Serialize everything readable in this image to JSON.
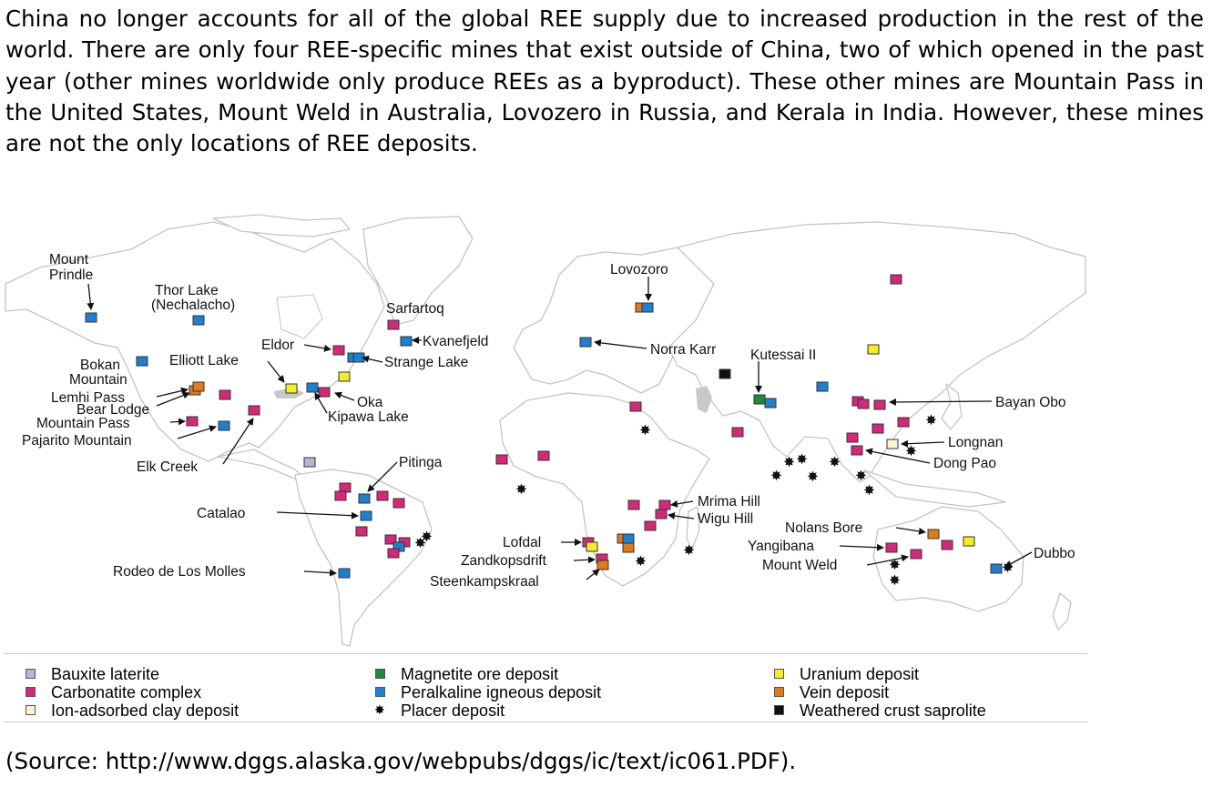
{
  "intro_text": "China no longer accounts for all of the global REE supply due to increased production in the rest of the world. There are only four REE-specific mines that exist outside of China, two of which opened in the past year (other mines worldwide only produce REEs as a byproduct). These other mines are Mountain Pass in the United States, Mount Weld in Australia, Lovozero in Russia, and Kerala in India. However, these mines are not the only locations of REE deposits.",
  "source_text": "(Source: http://www.dggs.alaska.gov/webpubs/dggs/ic/text/ic061.PDF).",
  "colors": {
    "bauxite": "#b9b2d8",
    "carbonatite": "#d6287a",
    "ion_clay": "#fbf5cf",
    "magnetite": "#1f8a3a",
    "peralkaline": "#1f7fd0",
    "placer": "#111111",
    "uranium": "#f4ee22",
    "vein": "#e07a1a",
    "weathered": "#111111",
    "land_stroke": "#c4c4c4"
  },
  "legend": [
    {
      "key": "bauxite",
      "label": "Bauxite laterite"
    },
    {
      "key": "carbonatite",
      "label": "Carbonatite complex"
    },
    {
      "key": "ion_clay",
      "label": "Ion-adsorbed clay deposit"
    },
    {
      "key": "magnetite",
      "label": "Magnetite ore deposit"
    },
    {
      "key": "peralkaline",
      "label": "Peralkaline igneous deposit"
    },
    {
      "key": "placer",
      "label": "Placer deposit"
    },
    {
      "key": "uranium",
      "label": "Uranium deposit"
    },
    {
      "key": "vein",
      "label": "Vein deposit"
    },
    {
      "key": "weathered",
      "label": "Weathered crust saprolite"
    }
  ],
  "map_labels": {
    "mount_prindle": [
      "Mount",
      "Prindle"
    ],
    "thor_lake": [
      "Thor Lake",
      "(Nechalacho)"
    ],
    "sarfartoq": "Sarfartoq",
    "kvanefjeld": "Kvanefjeld",
    "eldor": "Eldor",
    "strange_lake": "Strange Lake",
    "bokan_mountain": [
      "Bokan",
      "Mountain"
    ],
    "elliott_lake": "Elliott Lake",
    "oka": "Oka",
    "kipawa_lake": "Kipawa Lake",
    "lemhi_pass": "Lemhi Pass",
    "bear_lodge": "Bear Lodge",
    "mountain_pass": "Mountain Pass",
    "pajarito_mountain": "Pajarito Mountain",
    "elk_creek": "Elk Creek",
    "lovozoro": "Lovozoro",
    "norra_karr": "Norra Karr",
    "kutessai": "Kutessai II",
    "bayan_obo": "Bayan Obo",
    "longnan": "Longnan",
    "dong_pao": "Dong Pao",
    "pitinga": "Pitinga",
    "catalao": "Catalao",
    "rodeo": "Rodeo de Los Molles",
    "mrima_hill": "Mrima Hill",
    "wigu_hill": "Wigu Hill",
    "lofdal": "Lofdal",
    "zandkopsdrift": "Zandkopsdrift",
    "steenkampskraal": "Steenkampskraal",
    "nolans_bore": "Nolans Bore",
    "yangibana": "Yangibana",
    "mount_weld": "Mount Weld",
    "dubbo": "Dubbo"
  }
}
